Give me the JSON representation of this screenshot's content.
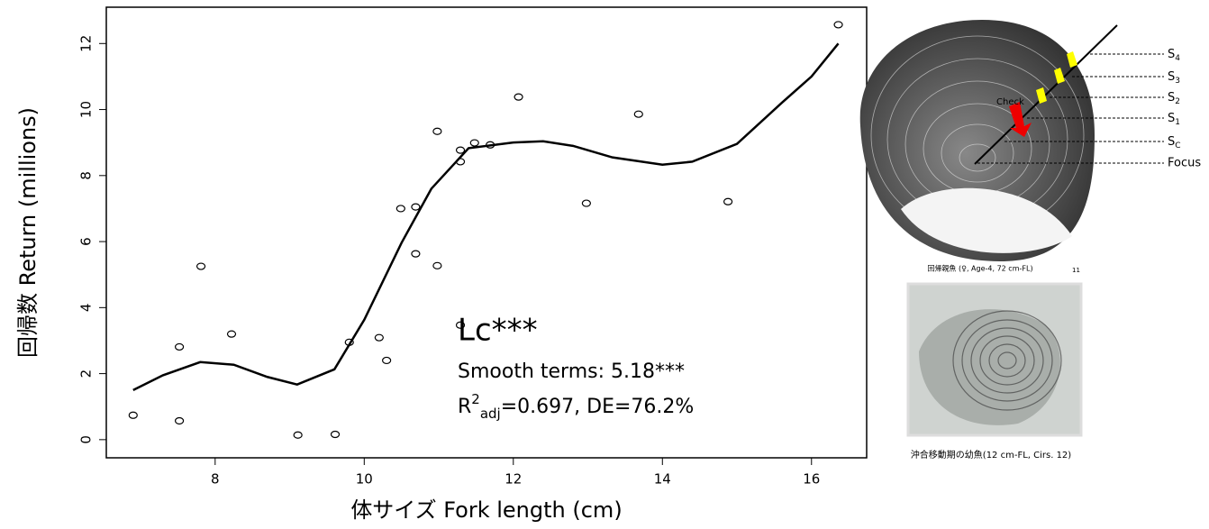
{
  "chart_data": {
    "type": "scatter",
    "x_label": "体サイズ Fork length (cm)",
    "y_label": "回帰数 Return (millions)",
    "xlim": [
      6.54,
      16.74
    ],
    "ylim": [
      -0.55,
      13.1
    ],
    "xticks": [
      8,
      10,
      12,
      14,
      16
    ],
    "yticks": [
      0,
      2,
      4,
      6,
      8,
      10,
      12
    ],
    "points": {
      "x": [
        6.9,
        7.52,
        7.52,
        7.81,
        8.22,
        9.11,
        9.61,
        9.8,
        10.2,
        10.3,
        10.49,
        10.69,
        10.69,
        10.98,
        10.98,
        11.29,
        11.29,
        11.29,
        11.48,
        11.69,
        12.07,
        12.98,
        13.68,
        14.88,
        16.36
      ],
      "y": [
        0.74,
        0.57,
        2.81,
        5.25,
        3.2,
        0.14,
        0.16,
        2.95,
        3.09,
        2.4,
        7.0,
        7.05,
        5.63,
        5.27,
        9.34,
        3.47,
        8.77,
        8.42,
        8.99,
        8.93,
        10.38,
        7.16,
        9.86,
        7.21,
        12.57
      ]
    },
    "fit": {
      "x": [
        6.9,
        7.3,
        7.8,
        8.25,
        8.7,
        9.1,
        9.6,
        10.0,
        10.5,
        10.9,
        11.4,
        12.0,
        12.4,
        12.8,
        13.33,
        14.0,
        14.4,
        15.0,
        15.6,
        16.0,
        16.36
      ],
      "y": [
        1.5,
        1.95,
        2.35,
        2.27,
        1.9,
        1.67,
        2.13,
        3.63,
        5.96,
        7.6,
        8.83,
        9.0,
        9.04,
        8.9,
        8.55,
        8.33,
        8.42,
        8.96,
        10.2,
        11.0,
        12.0
      ]
    },
    "annotations": {
      "label": "Lc***",
      "smooth": "Smooth terms: 5.18***",
      "r2": [
        "R",
        "2",
        "adj",
        "=0.697, DE=76.2%"
      ]
    }
  },
  "images": {
    "otolith": {
      "labels": [
        [
          "S",
          "4"
        ],
        [
          "S",
          "3"
        ],
        [
          "S",
          "2"
        ],
        [
          "S",
          "1"
        ],
        [
          "S",
          "C"
        ]
      ],
      "focus": "Focus",
      "check": "Check",
      "caption": "回帰親魚 (♀, Age-4, 72 cm-FL)",
      "page_number": "11"
    },
    "juvenile": {
      "caption": "沖合移動期の幼魚(12 cm-FL, Cirs. 12)"
    }
  }
}
